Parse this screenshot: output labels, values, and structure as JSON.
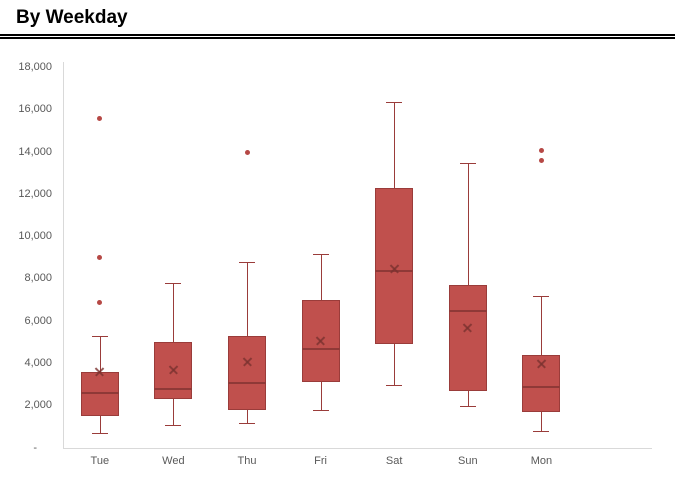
{
  "header": {
    "title": "By Weekday"
  },
  "chart_data": {
    "type": "box",
    "title": "By Weekday",
    "categories": [
      "Tue",
      "Wed",
      "Thu",
      "Fri",
      "Sat",
      "Sun",
      "Mon"
    ],
    "y_axis": {
      "min": 0,
      "max": 18000,
      "step": 2000,
      "tick_labels": [
        "18,000",
        "16,000",
        "14,000",
        "12,000",
        "10,000",
        "8,000",
        "6,000",
        "4,000",
        "2,000",
        "-"
      ]
    },
    "series": [
      {
        "name": "Tue",
        "whisker_low": 700,
        "q1": 1500,
        "median": 2600,
        "q3": 3600,
        "whisker_high": 5300,
        "mean": 3600,
        "outliers": [
          6900,
          9000,
          15600
        ]
      },
      {
        "name": "Wed",
        "whisker_low": 1100,
        "q1": 2300,
        "median": 2800,
        "q3": 5000,
        "whisker_high": 7800,
        "mean": 3700,
        "outliers": []
      },
      {
        "name": "Thu",
        "whisker_low": 1200,
        "q1": 1800,
        "median": 3100,
        "q3": 5300,
        "whisker_high": 8800,
        "mean": 4100,
        "outliers": [
          14000
        ]
      },
      {
        "name": "Fri",
        "whisker_low": 1800,
        "q1": 3100,
        "median": 4700,
        "q3": 7000,
        "whisker_high": 9200,
        "mean": 5100,
        "outliers": []
      },
      {
        "name": "Sat",
        "whisker_low": 3000,
        "q1": 4900,
        "median": 8400,
        "q3": 12300,
        "whisker_high": 16400,
        "mean": 8500,
        "outliers": []
      },
      {
        "name": "Sun",
        "whisker_low": 2000,
        "q1": 2700,
        "median": 6500,
        "q3": 7700,
        "whisker_high": 13500,
        "mean": 5700,
        "outliers": []
      },
      {
        "name": "Mon",
        "whisker_low": 800,
        "q1": 1700,
        "median": 2900,
        "q3": 4400,
        "whisker_high": 7200,
        "mean": 4000,
        "outliers": [
          13600,
          14100
        ]
      }
    ],
    "colors": {
      "box_fill": "#c0504d",
      "box_border": "#9a3c3a",
      "whisker": "#9a3c3a",
      "median_line": "#8f3937",
      "mean_marker": "#7b3230",
      "outlier_dot": "#b64845",
      "axis_line": "#d9d9d9",
      "tick_label": "#595959"
    },
    "layout": {
      "gridlines": false,
      "legend": "none",
      "category_slots": 8,
      "zero_label_style": "accounting-dash"
    }
  }
}
